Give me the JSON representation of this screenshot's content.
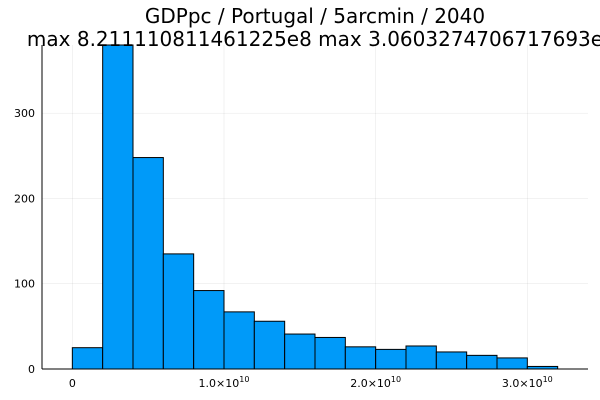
{
  "chart_data": {
    "type": "bar",
    "title": "GDPpc / Portugal / 5arcmin / 2040",
    "subtitle": "max 8.211110811461225e8  max 3.0603274706717693e",
    "xlabel": "",
    "ylabel": "",
    "bar_color": "#009af9",
    "edge_color": "#000000",
    "grid": true,
    "xlim": [
      -2000000000.0,
      34000000000.0
    ],
    "ylim": [
      0,
      380
    ],
    "bin_width": 2000000000.0,
    "bins": [
      {
        "x0": 0,
        "x1": 2000000000.0,
        "count": 25
      },
      {
        "x0": 2000000000.0,
        "x1": 4000000000.0,
        "count": 380
      },
      {
        "x0": 4000000000.0,
        "x1": 6000000000.0,
        "count": 248
      },
      {
        "x0": 6000000000.0,
        "x1": 8000000000.0,
        "count": 135
      },
      {
        "x0": 8000000000.0,
        "x1": 10000000000.0,
        "count": 92
      },
      {
        "x0": 10000000000.0,
        "x1": 12000000000.0,
        "count": 67
      },
      {
        "x0": 12000000000.0,
        "x1": 14000000000.0,
        "count": 56
      },
      {
        "x0": 14000000000.0,
        "x1": 16000000000.0,
        "count": 41
      },
      {
        "x0": 16000000000.0,
        "x1": 18000000000.0,
        "count": 37
      },
      {
        "x0": 18000000000.0,
        "x1": 20000000000.0,
        "count": 26
      },
      {
        "x0": 20000000000.0,
        "x1": 22000000000.0,
        "count": 23
      },
      {
        "x0": 22000000000.0,
        "x1": 24000000000.0,
        "count": 27
      },
      {
        "x0": 24000000000.0,
        "x1": 26000000000.0,
        "count": 20
      },
      {
        "x0": 26000000000.0,
        "x1": 28000000000.0,
        "count": 16
      },
      {
        "x0": 28000000000.0,
        "x1": 30000000000.0,
        "count": 13
      },
      {
        "x0": 30000000000.0,
        "x1": 32000000000.0,
        "count": 3
      }
    ],
    "x_ticks": [
      {
        "value": 0,
        "label": "0",
        "exponent": ""
      },
      {
        "value": 10000000000.0,
        "label": "1.0×10",
        "exponent": "10"
      },
      {
        "value": 20000000000.0,
        "label": "2.0×10",
        "exponent": "10"
      },
      {
        "value": 30000000000.0,
        "label": "3.0×10",
        "exponent": "10"
      }
    ],
    "y_ticks": [
      {
        "value": 0,
        "label": "0"
      },
      {
        "value": 100,
        "label": "100"
      },
      {
        "value": 200,
        "label": "200"
      },
      {
        "value": 300,
        "label": "300"
      }
    ]
  }
}
